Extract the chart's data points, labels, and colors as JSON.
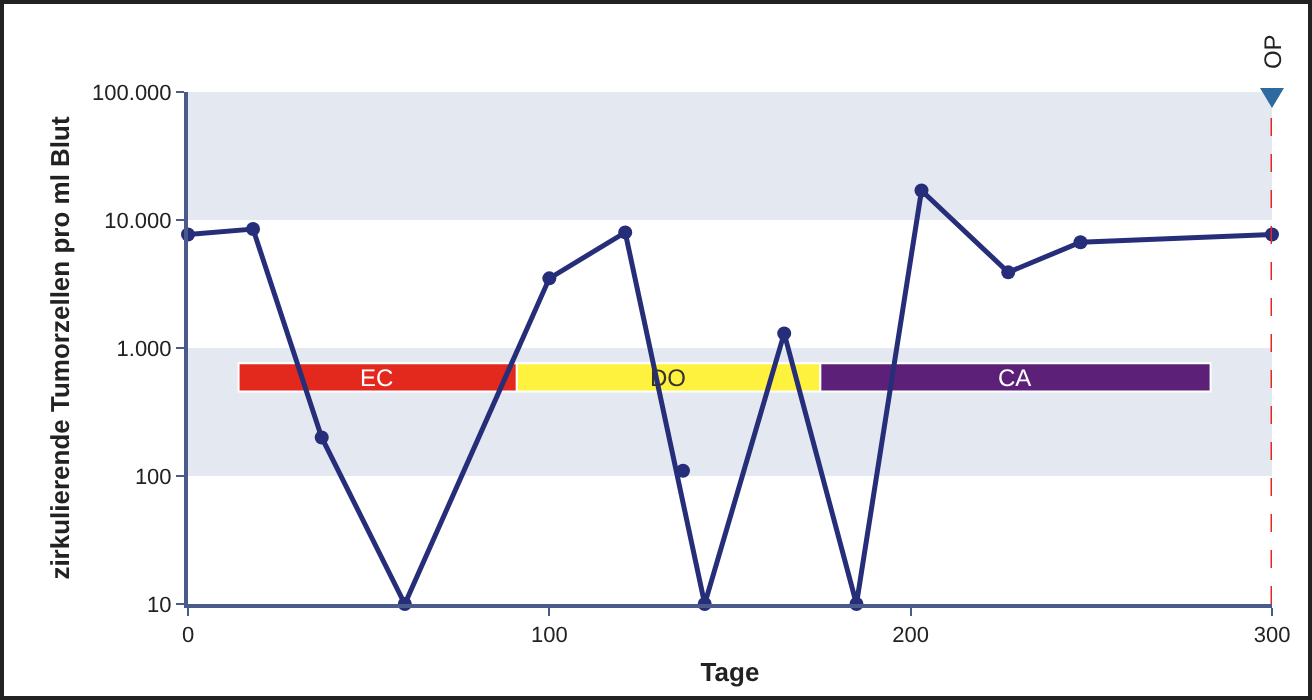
{
  "chart_data": {
    "type": "line",
    "xlabel": "Tage",
    "ylabel": "zirkulierende Tumorzellen pro ml Blut",
    "log": "y",
    "marker": "circle",
    "line_style": "solid",
    "grid": false,
    "xlim": [
      0,
      300
    ],
    "xticks": [
      0,
      100,
      200,
      300
    ],
    "ylim": [
      10,
      100000
    ],
    "yticks": [
      {
        "value": 10,
        "label": "10"
      },
      {
        "value": 100,
        "label": "100"
      },
      {
        "value": 1000,
        "label": "1.000"
      },
      {
        "value": 10000,
        "label": "10.000"
      },
      {
        "value": 100000,
        "label": "100.000"
      }
    ],
    "series": [
      {
        "color": "#262e7a",
        "x": [
          0,
          18,
          37,
          60,
          100,
          121,
          143,
          165,
          185,
          203,
          227,
          247,
          300
        ],
        "values": [
          7700,
          8500,
          200,
          10,
          3500,
          8000,
          10,
          1300,
          10,
          17000,
          3900,
          6700,
          7700
        ]
      },
      {
        "type": "scatter",
        "color": "#262e7a",
        "x": [
          137
        ],
        "values": [
          110
        ]
      }
    ],
    "bands": [
      {
        "axis": "y",
        "from": 10000,
        "to": 100000,
        "color": "#e3e8f1"
      },
      {
        "axis": "y",
        "from": 100,
        "to": 1000,
        "color": "#e3e8f1"
      },
      {
        "axis": "x",
        "from": 14,
        "to": 91,
        "label": "EC",
        "color": "#e3281e"
      },
      {
        "axis": "x",
        "from": 91,
        "to": 175,
        "label": "DO",
        "color": "#fff23f"
      },
      {
        "axis": "x",
        "from": 175,
        "to": 283,
        "label": "CA",
        "color": "#5c2078"
      }
    ],
    "ref_lines": [
      {
        "axis": "x",
        "value": 300,
        "label": "OP",
        "color": "#e3281e",
        "line_style": "dashed"
      }
    ]
  }
}
